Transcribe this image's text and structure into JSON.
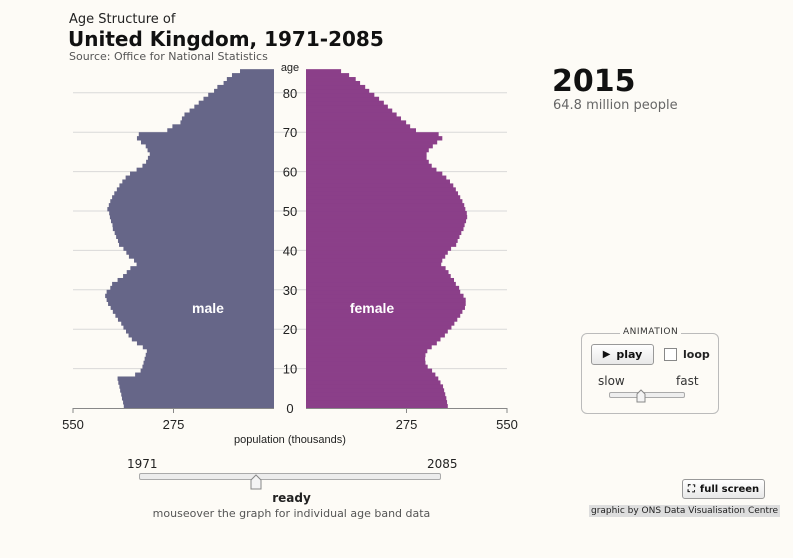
{
  "header": {
    "subtitle": "Age Structure of",
    "title": "United Kingdom, 1971-2085",
    "source": "Source: Office for National Statistics"
  },
  "display": {
    "year": "2015",
    "population": "64.8 million people"
  },
  "chart_data": {
    "type": "population-pyramid",
    "title": "United Kingdom, 1971-2085",
    "xlabel": "population (thousands)",
    "ylabel": "age",
    "x_ticks": [
      "550",
      "275",
      "0",
      "275",
      "550"
    ],
    "y_ticks": [
      "0",
      "10",
      "20",
      "30",
      "40",
      "50",
      "60",
      "70",
      "80"
    ],
    "xlim": [
      0,
      550
    ],
    "ylim": [
      0,
      85
    ],
    "colors": {
      "male": "#666688",
      "female": "#8b3f89"
    },
    "series": [
      {
        "name": "male",
        "ages": [
          0,
          1,
          2,
          3,
          4,
          5,
          6,
          7,
          8,
          9,
          10,
          11,
          12,
          13,
          14,
          15,
          16,
          17,
          18,
          19,
          20,
          21,
          22,
          23,
          24,
          25,
          26,
          27,
          28,
          29,
          30,
          31,
          32,
          33,
          34,
          35,
          36,
          37,
          38,
          39,
          40,
          41,
          42,
          43,
          44,
          45,
          46,
          47,
          48,
          49,
          50,
          51,
          52,
          53,
          54,
          55,
          56,
          57,
          58,
          59,
          60,
          61,
          62,
          63,
          64,
          65,
          66,
          67,
          68,
          69,
          70,
          71,
          72,
          73,
          74,
          75,
          76,
          77,
          78,
          79,
          80,
          81,
          82,
          83,
          84,
          85
        ],
        "values": [
          411,
          413,
          416,
          418,
          421,
          423,
          426,
          428,
          380,
          365,
          360,
          357,
          354,
          351,
          348,
          359,
          375,
          389,
          398,
          405,
          412,
          418,
          427,
          434,
          441,
          447,
          454,
          458,
          462,
          458,
          448,
          443,
          428,
          413,
          403,
          393,
          376,
          383,
          397,
          404,
          412,
          424,
          427,
          432,
          436,
          441,
          442,
          446,
          449,
          451,
          456,
          452,
          448,
          443,
          437,
          430,
          423,
          415,
          406,
          394,
          376,
          360,
          350,
          345,
          340,
          346,
          351,
          364,
          375,
          370,
          292,
          278,
          256,
          252,
          245,
          231,
          218,
          206,
          193,
          180,
          164,
          155,
          138,
          129,
          115,
          93
        ]
      },
      {
        "name": "female",
        "ages": [
          0,
          1,
          2,
          3,
          4,
          5,
          6,
          7,
          8,
          9,
          10,
          11,
          12,
          13,
          14,
          15,
          16,
          17,
          18,
          19,
          20,
          21,
          22,
          23,
          24,
          25,
          26,
          27,
          28,
          29,
          30,
          31,
          32,
          33,
          34,
          35,
          36,
          37,
          38,
          39,
          40,
          41,
          42,
          43,
          44,
          45,
          46,
          47,
          48,
          49,
          50,
          51,
          52,
          53,
          54,
          55,
          56,
          57,
          58,
          59,
          60,
          61,
          62,
          63,
          64,
          65,
          66,
          67,
          68,
          69,
          70,
          71,
          72,
          73,
          74,
          75,
          76,
          77,
          78,
          79,
          80,
          81,
          82,
          83,
          84,
          85
        ],
        "values": [
          388,
          386,
          384,
          381,
          378,
          375,
          368,
          362,
          354,
          345,
          333,
          327,
          326,
          327,
          332,
          344,
          358,
          368,
          380,
          388,
          398,
          406,
          414,
          422,
          428,
          435,
          437,
          437,
          431,
          422,
          419,
          410,
          405,
          396,
          390,
          382,
          370,
          373,
          381,
          388,
          397,
          411,
          415,
          420,
          425,
          431,
          434,
          438,
          441,
          440,
          436,
          433,
          428,
          422,
          416,
          410,
          403,
          394,
          384,
          373,
          357,
          344,
          336,
          330,
          330,
          336,
          347,
          359,
          373,
          363,
          301,
          285,
          274,
          260,
          248,
          236,
          224,
          213,
          200,
          187,
          173,
          162,
          148,
          136,
          118,
          96
        ]
      }
    ],
    "annotations": [
      "male",
      "female"
    ]
  },
  "controls": {
    "animation_label": "ANIMATION",
    "play_label": "play",
    "loop_label": "loop",
    "slow_label": "slow",
    "fast_label": "fast",
    "speed": 0.43,
    "year_start": "1971",
    "year_end": "2085",
    "year_position": 0.39,
    "status": "ready",
    "hint": "mouseover the graph for individual age band data",
    "fullscreen_label": "full screen"
  },
  "credit": "graphic by ONS Data Visualisation Centre"
}
